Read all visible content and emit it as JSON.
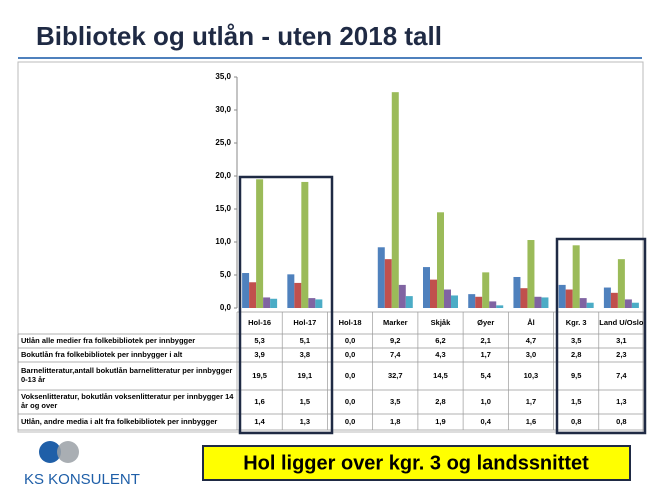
{
  "title": "Bibliotek og utlån - uten 2018 tall",
  "chart_data": {
    "type": "bar",
    "categories": [
      "Hol-16",
      "Hol-17",
      "Hol-18",
      "Marker",
      "Skjåk",
      "Øyer",
      "Ål",
      "Kgr. 3",
      "Land U/Oslo"
    ],
    "series": [
      {
        "name": "Utlån alle medier fra folkebibliotek per innbygger",
        "color": "#4f81bd",
        "values": [
          5.3,
          5.1,
          0,
          9.2,
          6.2,
          2.1,
          4.7,
          3.5,
          3.1
        ],
        "value_labels": [
          "5,3",
          "5,1",
          "0,0",
          "9,2",
          "6,2",
          "2,1",
          "4,7",
          "3,5",
          "3,1"
        ]
      },
      {
        "name": "Bokutlån fra folkebibliotek per innbygger i alt",
        "color": "#c0504d",
        "values": [
          3.9,
          3.8,
          0,
          7.4,
          4.3,
          1.7,
          3.0,
          2.8,
          2.3
        ],
        "value_labels": [
          "3,9",
          "3,8",
          "0,0",
          "7,4",
          "4,3",
          "1,7",
          "3,0",
          "2,8",
          "2,3"
        ]
      },
      {
        "name": "Barnelitteratur,antall bokutlån barnelitteratur per innbygger 0-13 år",
        "color": "#9bbb59",
        "values": [
          19.5,
          19.1,
          0,
          32.7,
          14.5,
          5.4,
          10.3,
          9.5,
          7.4
        ],
        "value_labels": [
          "19,5",
          "19,1",
          "0,0",
          "32,7",
          "14,5",
          "5,4",
          "10,3",
          "9,5",
          "7,4"
        ]
      },
      {
        "name": "Voksenlitteratur, bokutlån voksenlitteratur per innbygger 14 år og over",
        "color": "#8064a2",
        "values": [
          1.6,
          1.5,
          0,
          3.5,
          2.8,
          1.0,
          1.7,
          1.5,
          1.3
        ],
        "value_labels": [
          "1,6",
          "1,5",
          "0,0",
          "3,5",
          "2,8",
          "1,0",
          "1,7",
          "1,5",
          "1,3"
        ]
      },
      {
        "name": "Utlån, andre media i alt fra folkebibliotek per innbygger",
        "color": "#4bacc6",
        "values": [
          1.4,
          1.3,
          0,
          1.8,
          1.9,
          0.4,
          1.6,
          0.8,
          0.8
        ],
        "value_labels": [
          "1,4",
          "1,3",
          "0,0",
          "1,8",
          "1,9",
          "0,4",
          "1,6",
          "0,8",
          "0,8"
        ]
      }
    ],
    "ylim": [
      0,
      35
    ],
    "yticks": [
      {
        "value": 0,
        "label": "0,0"
      },
      {
        "value": 5,
        "label": "5,0"
      },
      {
        "value": 10,
        "label": "10,0"
      },
      {
        "value": 15,
        "label": "15,0"
      },
      {
        "value": 20,
        "label": "20,0"
      },
      {
        "value": 25,
        "label": "25,0"
      },
      {
        "value": 30,
        "label": "30,0"
      },
      {
        "value": 35,
        "label": "35,0"
      }
    ],
    "grid": false
  },
  "callout": "Hol ligger over kgr. 3 og landssnittet",
  "logo": "KS KONSULENT"
}
